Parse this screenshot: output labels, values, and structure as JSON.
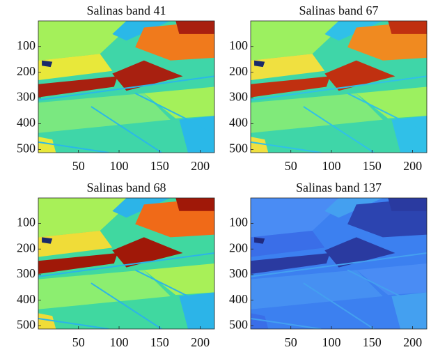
{
  "chart_data": [
    {
      "type": "image",
      "title": "Salinas band 41",
      "xlim": [
        0.5,
        217.5
      ],
      "ylim": [
        0.5,
        512.5
      ],
      "xticks": [
        50,
        100,
        150,
        200
      ],
      "yticks": [
        100,
        200,
        300,
        400,
        500
      ]
    },
    {
      "type": "image",
      "title": "Salinas band 67",
      "xlim": [
        0.5,
        217.5
      ],
      "ylim": [
        0.5,
        512.5
      ],
      "xticks": [
        50,
        100,
        150,
        200
      ],
      "yticks": [
        100,
        200,
        300,
        400,
        500
      ]
    },
    {
      "type": "image",
      "title": "Salinas band 68",
      "xlim": [
        0.5,
        217.5
      ],
      "ylim": [
        0.5,
        512.5
      ],
      "xticks": [
        50,
        100,
        150,
        200
      ],
      "yticks": [
        100,
        200,
        300,
        400,
        500
      ]
    },
    {
      "type": "image",
      "title": "Salinas band 137",
      "xlim": [
        0.5,
        217.5
      ],
      "ylim": [
        0.5,
        512.5
      ],
      "xticks": [
        50,
        100,
        150,
        200
      ],
      "yticks": [
        100,
        200,
        300,
        400,
        500
      ]
    }
  ]
}
